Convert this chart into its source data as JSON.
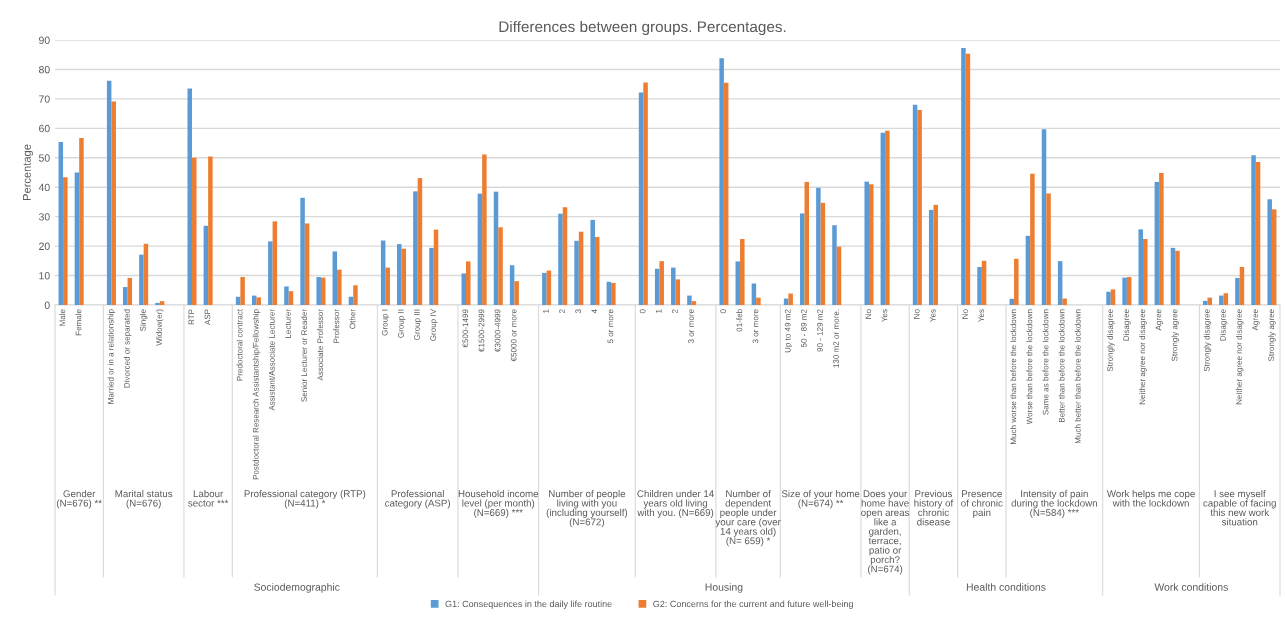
{
  "chart_data": {
    "type": "bar",
    "title": "Differences between groups. Percentages.",
    "ylabel": "Percentage",
    "categories": [
      "Male",
      "Female",
      null,
      "Married or in a relationship",
      "Divorced or separated",
      "Single",
      "Widow(er)",
      null,
      "RTP",
      "ASP",
      null,
      "Predoctoral contract",
      "Postdoctoral Research Assistantship/Fellowship",
      "Assistant/Associate Lecturer",
      "Lecturer",
      "Senior Lecturer or Reader",
      "Associate Professor",
      "Professor",
      "Other",
      null,
      "Group I",
      "Group II",
      "Group III",
      "Group IV",
      null,
      "€500-1499",
      "€1500-2999",
      "€3000-4999",
      "€5000 or more",
      null,
      "1",
      "2",
      "3",
      "4",
      "5 or more",
      null,
      "0",
      "1",
      "2",
      "3 or more",
      null,
      "0",
      "01-feb",
      "3 or more",
      null,
      "Up to 49 m2",
      "50 - 89 m2",
      "90 - 129 m2",
      "130 m2 or more.",
      null,
      "No",
      "Yes",
      null,
      "No",
      "Yes",
      null,
      "No",
      "Yes",
      null,
      "Much worse than before the lockdown",
      "Worse than before the lockdown",
      "Same as before the lockdown",
      "Better than before the lockdown",
      "Much better than before the lockdown",
      null,
      "Strongly disagree",
      "Disagree",
      "Neither agree nor disagree",
      "Agree",
      "Strongly agree",
      null,
      "Strongly disagree",
      "Disagree",
      "Neither agree nor disagree",
      "Agree",
      "Strongly agree"
    ],
    "series": [
      {
        "name": "G1: Consequences in the daily life routine",
        "color": "#5b9bd5",
        "values": [
          55.4,
          45.0,
          null,
          76.2,
          6.1,
          17.1,
          0.7,
          null,
          73.5,
          26.9,
          null,
          2.8,
          3.2,
          21.6,
          6.3,
          36.4,
          9.5,
          18.2,
          2.8,
          null,
          21.9,
          20.7,
          38.6,
          19.4,
          null,
          10.7,
          37.8,
          38.5,
          13.5,
          null,
          10.9,
          31.0,
          21.8,
          28.9,
          7.9,
          null,
          72.2,
          12.3,
          12.7,
          3.2,
          null,
          83.8,
          14.8,
          7.3,
          null,
          2.2,
          31.1,
          39.8,
          27.1,
          null,
          41.9,
          58.5,
          null,
          68.0,
          32.3,
          null,
          87.3,
          12.9,
          null,
          2.1,
          23.5,
          59.7,
          14.9,
          0,
          null,
          4.5,
          9.3,
          25.7,
          41.8,
          19.4,
          null,
          1.4,
          3.2,
          9.2,
          50.9,
          35.9
        ]
      },
      {
        "name": "G2: Concerns for the current and future well-being",
        "color": "#ed7d31",
        "values": [
          43.4,
          56.7,
          null,
          69.1,
          9.2,
          20.8,
          1.3,
          null,
          50.0,
          50.4,
          null,
          9.5,
          2.6,
          28.4,
          4.7,
          27.7,
          9.3,
          12.0,
          6.7,
          null,
          12.7,
          19.1,
          43.1,
          25.6,
          null,
          14.8,
          51.1,
          26.4,
          8.1,
          null,
          11.7,
          33.2,
          24.9,
          23.1,
          7.5,
          null,
          75.6,
          14.9,
          8.7,
          1.3,
          null,
          75.5,
          22.4,
          2.5,
          null,
          3.9,
          41.8,
          34.7,
          19.8,
          null,
          41.0,
          59.2,
          null,
          66.2,
          34.0,
          null,
          85.3,
          15.0,
          null,
          15.7,
          44.6,
          37.9,
          2.2,
          0,
          null,
          5.3,
          9.5,
          22.4,
          44.8,
          18.4,
          null,
          2.5,
          4.0,
          12.9,
          48.6,
          32.5
        ]
      }
    ],
    "ylim": [
      0,
      90
    ],
    "yticks": [
      0,
      10,
      20,
      30,
      40,
      50,
      60,
      70,
      80,
      90
    ],
    "grid": "y",
    "legend": "bottom",
    "annotations": [
      "Gender (N=676) **",
      "Marital status (N=676)",
      "Labour sector ***",
      "Professional category (RTP) (N=411) *",
      "Professional category (ASP)",
      "Household income level (per month) (N=669) ***",
      "Number of people living with you (including yourself) (N=672)",
      "Children under 14 years old living with you. (N=669)",
      "Number of dependent people under your care (over 14 years old) (N= 659) *",
      "Size of your home (N=674) **",
      "Does your home have open areas like a garden, terrace, patio or porch? (N=674)",
      "Previous history of chronic disease",
      "Presence of chronic pain",
      "Intensity of pain during the lockdown (N=584) ***",
      "Work helps me cope with the lockdown",
      "I see myself capable of facing this new work situation",
      "Sociodemographic",
      "Housing",
      "Health conditions",
      "Work conditions"
    ]
  }
}
